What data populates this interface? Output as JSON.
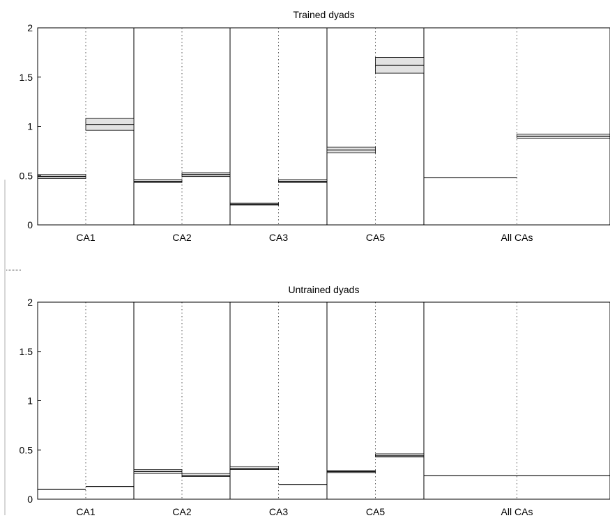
{
  "chart_data": [
    {
      "type": "bar",
      "title": "Trained dyads",
      "ylim": [
        0,
        2
      ],
      "yticks": [
        "0",
        "0.5",
        "1",
        "1.5",
        "2"
      ],
      "categories": [
        "CA1",
        "CA2",
        "CA3",
        "CA5",
        "All CAs"
      ],
      "bars": [
        {
          "group": "CA1",
          "value": 0.49,
          "lower": 0.47,
          "upper": 0.51
        },
        {
          "group": "CA1",
          "value": 1.02,
          "lower": 0.96,
          "upper": 1.08
        },
        {
          "group": "CA2",
          "value": 0.44,
          "lower": 0.43,
          "upper": 0.46
        },
        {
          "group": "CA2",
          "value": 0.51,
          "lower": 0.49,
          "upper": 0.53
        },
        {
          "group": "CA3",
          "value": 0.21,
          "lower": 0.2,
          "upper": 0.22
        },
        {
          "group": "CA3",
          "value": 0.44,
          "lower": 0.43,
          "upper": 0.46
        },
        {
          "group": "CA5",
          "value": 0.76,
          "lower": 0.73,
          "upper": 0.79
        },
        {
          "group": "CA5",
          "value": 1.62,
          "lower": 1.54,
          "upper": 1.7
        },
        {
          "group": "All CAs",
          "value": 0.48,
          "lower": 0.475,
          "upper": 0.485
        },
        {
          "group": "All CAs",
          "value": 0.9,
          "lower": 0.88,
          "upper": 0.92
        }
      ]
    },
    {
      "type": "bar",
      "title": "Untrained dyads",
      "ylim": [
        0,
        2
      ],
      "yticks": [
        "0",
        "0.5",
        "1",
        "1.5",
        "2"
      ],
      "categories": [
        "CA1",
        "CA2",
        "CA3",
        "CA5",
        "All CAs"
      ],
      "bars": [
        {
          "group": "CA1",
          "value": 0.1,
          "lower": 0.1,
          "upper": 0.1
        },
        {
          "group": "CA1",
          "value": 0.13,
          "lower": 0.13,
          "upper": 0.13
        },
        {
          "group": "CA2",
          "value": 0.28,
          "lower": 0.26,
          "upper": 0.3
        },
        {
          "group": "CA2",
          "value": 0.24,
          "lower": 0.23,
          "upper": 0.26
        },
        {
          "group": "CA3",
          "value": 0.31,
          "lower": 0.3,
          "upper": 0.33
        },
        {
          "group": "CA3",
          "value": 0.15,
          "lower": 0.15,
          "upper": 0.15
        },
        {
          "group": "CA5",
          "value": 0.28,
          "lower": 0.27,
          "upper": 0.29
        },
        {
          "group": "CA5",
          "value": 0.44,
          "lower": 0.43,
          "upper": 0.46
        },
        {
          "group": "All CAs",
          "value": 0.24,
          "lower": 0.24,
          "upper": 0.24
        },
        {
          "group": "All CAs",
          "value": 0.24,
          "lower": 0.24,
          "upper": 0.24
        }
      ]
    }
  ],
  "colors": {
    "axis": "#000000",
    "ci_fill": "#e2e2e2",
    "divider": "#000000",
    "dotted": "#555555"
  }
}
